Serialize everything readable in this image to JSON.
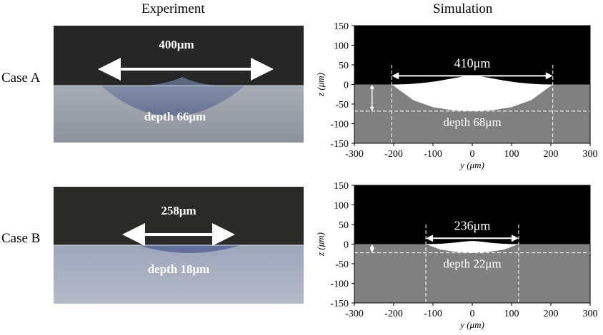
{
  "headers": {
    "experiment": "Experiment",
    "simulation": "Simulation"
  },
  "cases": [
    {
      "label": "Case A",
      "experiment": {
        "width_label": "400μm",
        "depth_label": "depth 66μm"
      },
      "simulation": {
        "width_label": "410μm",
        "depth_label": "depth 68μm"
      }
    },
    {
      "label": "Case B",
      "experiment": {
        "width_label": "258μm",
        "depth_label": "depth 18μm"
      },
      "simulation": {
        "width_label": "236μm",
        "depth_label": "depth 22μm"
      }
    }
  ],
  "axes": {
    "xlabel": "y (μm)",
    "ylabel": "z (μm)"
  },
  "chart_data": [
    {
      "type": "area",
      "xlabel": "y (μm)",
      "ylabel": "z (μm)",
      "xlim": [
        -300,
        300
      ],
      "ylim": [
        -150,
        150
      ],
      "xticks": [
        -300,
        -200,
        -100,
        0,
        100,
        200,
        300
      ],
      "yticks": [
        150,
        100,
        50,
        0,
        -50,
        -100,
        -150
      ],
      "x": [
        -205,
        -150,
        -100,
        -50,
        0,
        50,
        100,
        150,
        205
      ],
      "y": [
        0,
        -40,
        -58,
        -66,
        -68,
        -66,
        -58,
        -40,
        0
      ],
      "bump_peak": 22,
      "width_um": 410,
      "depth_um": 68
    },
    {
      "type": "area",
      "xlabel": "y (μm)",
      "ylabel": "z (μm)",
      "xlim": [
        -300,
        300
      ],
      "ylim": [
        -150,
        150
      ],
      "xticks": [
        -300,
        -200,
        -100,
        0,
        100,
        200,
        300
      ],
      "yticks": [
        150,
        100,
        50,
        0,
        -50,
        -100,
        -150
      ],
      "x": [
        -118,
        -80,
        -40,
        0,
        40,
        80,
        118
      ],
      "y": [
        0,
        -14,
        -20,
        -22,
        -20,
        -14,
        0
      ],
      "bump_peak": 8,
      "width_um": 236,
      "depth_um": 22
    }
  ]
}
